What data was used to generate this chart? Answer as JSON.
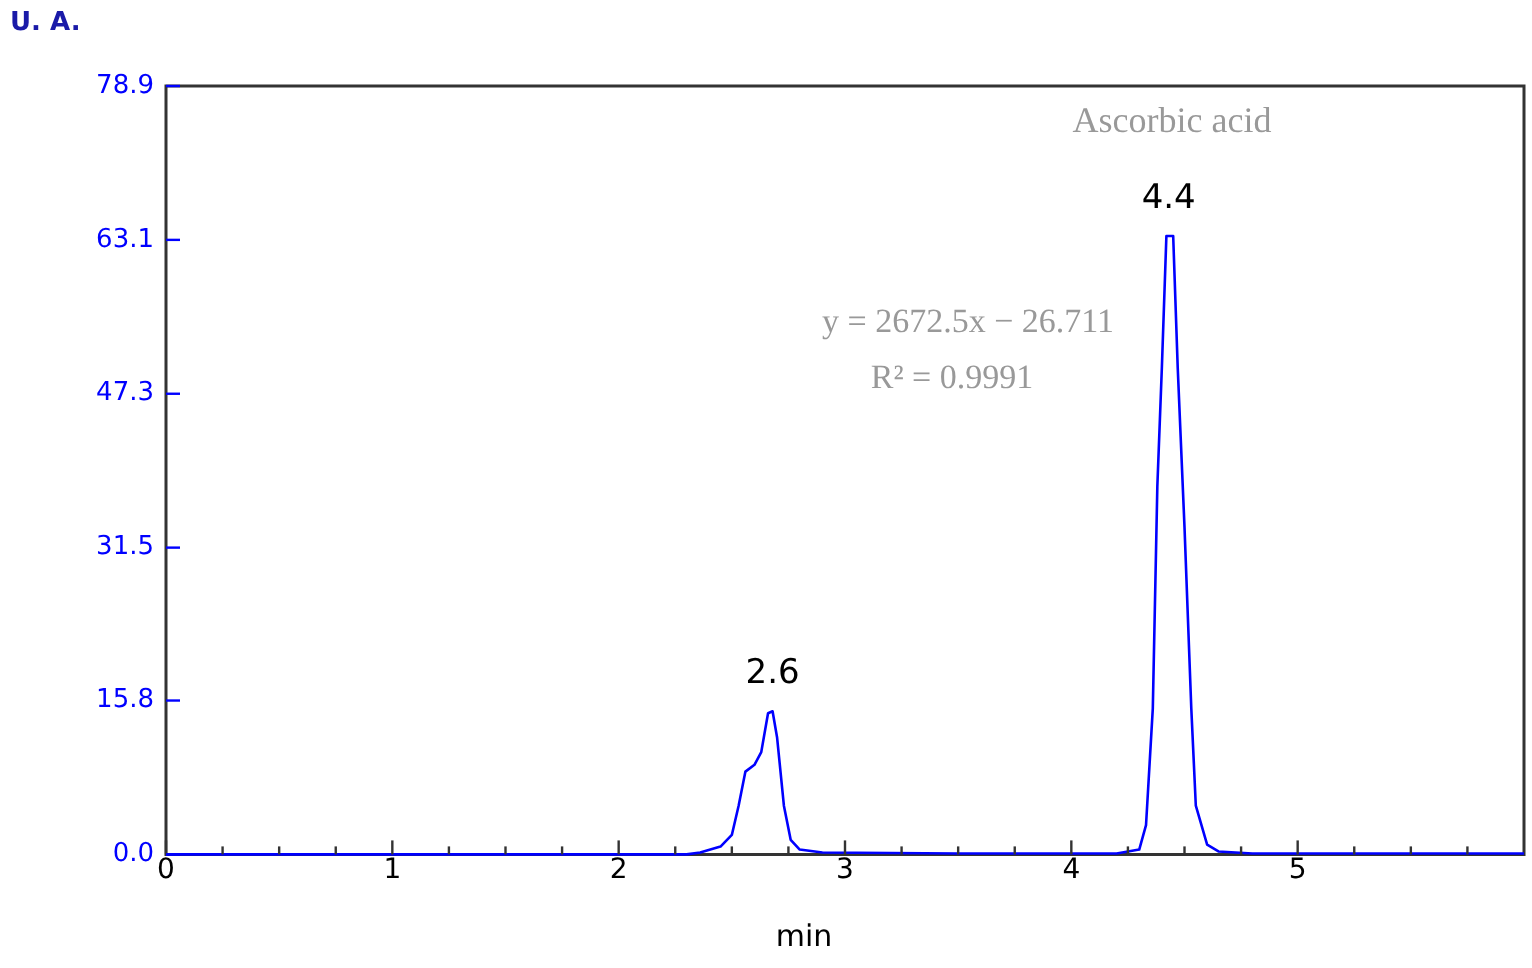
{
  "chart_data": {
    "type": "line",
    "xlabel": "min",
    "ylabel": "U. A.",
    "x": [
      0,
      2.3,
      2.36,
      2.45,
      2.5,
      2.53,
      2.56,
      2.6,
      2.63,
      2.66,
      2.68,
      2.7,
      2.73,
      2.76,
      2.8,
      2.9,
      3.5,
      4.2,
      4.3,
      4.33,
      4.36,
      4.38,
      4.4,
      4.42,
      4.45,
      4.47,
      4.5,
      4.53,
      4.55,
      4.6,
      4.65,
      4.8,
      6
    ],
    "series": [
      {
        "color": "#0000ff",
        "values": [
          0,
          0,
          0.2,
          0.8,
          2,
          5,
          8.5,
          9.2,
          10.5,
          14.5,
          14.7,
          12,
          5,
          1.5,
          0.5,
          0.2,
          0.1,
          0.1,
          0.5,
          3,
          15,
          37.8,
          50,
          63.5,
          63.5,
          50,
          33.6,
          15,
          5,
          1,
          0.3,
          0.1,
          0.1
        ]
      }
    ],
    "xlim": [
      0,
      6
    ],
    "xticks": [
      0,
      {
        "value": 0.25,
        "label": null
      },
      {
        "value": 0.5,
        "label": null
      },
      {
        "value": 0.75,
        "label": null
      },
      1,
      {
        "value": 1.25,
        "label": null
      },
      {
        "value": 1.5,
        "label": null
      },
      {
        "value": 1.75,
        "label": null
      },
      2,
      {
        "value": 2.25,
        "label": null
      },
      {
        "value": 2.5,
        "label": null
      },
      {
        "value": 2.75,
        "label": null
      },
      3,
      {
        "value": 3.25,
        "label": null
      },
      {
        "value": 3.5,
        "label": null
      },
      {
        "value": 3.75,
        "label": null
      },
      4,
      {
        "value": 4.25,
        "label": null
      },
      {
        "value": 4.5,
        "label": null
      },
      {
        "value": 4.75,
        "label": null
      },
      5,
      {
        "value": 5.25,
        "label": null
      },
      {
        "value": 5.5,
        "label": null
      },
      {
        "value": 5.75,
        "label": null
      }
    ],
    "ylim": [
      0,
      78.9
    ],
    "yticks": [
      {
        "value": 0,
        "label": "0.0"
      },
      15.8,
      31.5,
      47.3,
      63.1,
      78.9
    ],
    "grid": false,
    "legend": false,
    "marker": "none",
    "line_style": "solid",
    "annotations": [
      {
        "text": "2.6",
        "x": 2.68,
        "y": 14.7
      },
      {
        "text": "4.4",
        "x": 4.43,
        "y": 63.5
      },
      "Ascorbic acid",
      "y = 2672.5x − 26.711",
      "R² = 0.9991"
    ]
  }
}
